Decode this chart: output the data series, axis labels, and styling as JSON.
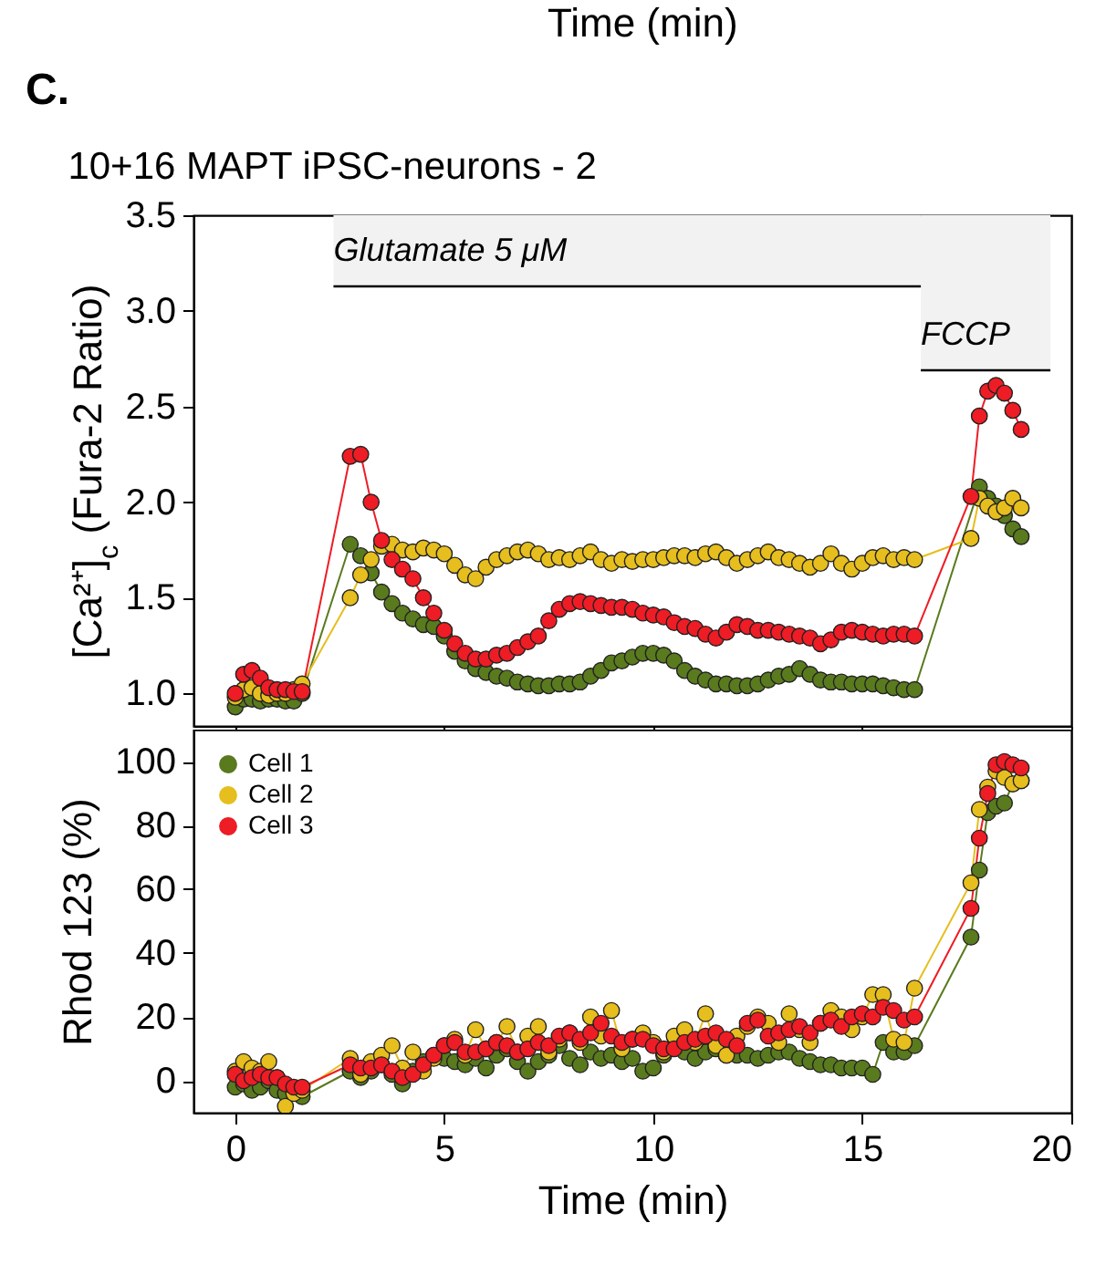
{
  "chart_data": [
    {
      "type": "line",
      "title": "10+16 MAPT iPSC-neurons - 2",
      "ylabel": "[Ca²⁺]$_{c}$ (Fura-2 Ratio)",
      "marker": "circle",
      "tick_labels": "y",
      "grid": false,
      "annotations": [
        "Time (min)",
        "C."
      ],
      "bands": [
        {
          "axis": "x",
          "from": 2.35,
          "to": 16.4,
          "label": "Glutamate 5 μM",
          "color": "#f2f2f2"
        },
        {
          "axis": "x",
          "from": 16.4,
          "to": 19.5,
          "label": "FCCP",
          "color": "#f2f2f2"
        }
      ],
      "xlim": [
        -1,
        20
      ],
      "xticks": [
        0,
        5,
        10,
        15,
        20
      ],
      "ylim": [
        0.83,
        3.5
      ],
      "yticks": [
        {
          "value": 1,
          "label": "1.0"
        },
        {
          "value": 1.5,
          "label": "1.5"
        },
        {
          "value": 2,
          "label": "2.0"
        },
        {
          "value": 2.5,
          "label": "2.5"
        },
        {
          "value": 3,
          "label": "3.0"
        },
        {
          "value": 3.5,
          "label": "3.5"
        }
      ],
      "x": [
        0,
        0.2,
        0.4,
        0.6,
        0.8,
        1,
        1.2,
        1.4,
        1.6,
        2.75,
        3,
        3.25,
        3.5,
        3.75,
        4,
        4.25,
        4.5,
        4.75,
        5,
        5.25,
        5.5,
        5.75,
        6,
        6.25,
        6.5,
        6.75,
        7,
        7.25,
        7.5,
        7.75,
        8,
        8.25,
        8.5,
        8.75,
        9,
        9.25,
        9.5,
        9.75,
        10,
        10.25,
        10.5,
        10.75,
        11,
        11.25,
        11.5,
        11.75,
        12,
        12.25,
        12.5,
        12.75,
        13,
        13.25,
        13.5,
        13.75,
        14,
        14.25,
        14.5,
        14.75,
        15,
        15.25,
        15.5,
        15.75,
        16,
        16.25,
        17.6,
        17.8,
        18,
        18.2,
        18.4,
        18.6,
        18.8
      ],
      "series": [
        {
          "color": "#5a7a1e",
          "values": [
            0.93,
            0.97,
            0.97,
            0.96,
            0.97,
            0.97,
            0.96,
            0.96,
            1.0,
            1.78,
            1.72,
            1.63,
            1.53,
            1.47,
            1.42,
            1.39,
            1.36,
            1.35,
            1.3,
            1.22,
            1.17,
            1.13,
            1.11,
            1.09,
            1.08,
            1.06,
            1.05,
            1.04,
            1.04,
            1.05,
            1.05,
            1.06,
            1.09,
            1.12,
            1.16,
            1.17,
            1.19,
            1.21,
            1.21,
            1.2,
            1.17,
            1.12,
            1.09,
            1.07,
            1.05,
            1.05,
            1.04,
            1.04,
            1.05,
            1.07,
            1.09,
            1.1,
            1.13,
            1.1,
            1.07,
            1.06,
            1.06,
            1.05,
            1.05,
            1.05,
            1.04,
            1.03,
            1.02,
            1.02,
            null,
            2.08,
            2.02,
            1.98,
            1.93,
            1.86,
            1.82
          ]
        },
        {
          "color": "#e6be1e",
          "values": [
            0.98,
            1.02,
            1.03,
            1.0,
            0.99,
            1.0,
            1.0,
            1.02,
            1.05,
            1.5,
            1.62,
            1.7,
            1.77,
            1.78,
            1.75,
            1.74,
            1.76,
            1.75,
            1.73,
            1.67,
            1.62,
            1.6,
            1.66,
            1.7,
            1.72,
            1.74,
            1.75,
            1.73,
            1.7,
            1.71,
            1.7,
            1.72,
            1.74,
            1.7,
            1.68,
            1.7,
            1.69,
            1.7,
            1.7,
            1.71,
            1.72,
            1.72,
            1.71,
            1.73,
            1.74,
            1.71,
            1.68,
            1.7,
            1.72,
            1.74,
            1.71,
            1.7,
            1.68,
            1.66,
            1.68,
            1.73,
            1.68,
            1.65,
            1.68,
            1.71,
            1.72,
            1.7,
            1.71,
            1.7,
            1.81,
            2.02,
            1.98,
            1.95,
            1.97,
            2.02,
            1.97
          ]
        },
        {
          "color": "#ee1c25",
          "values": [
            1.0,
            1.1,
            1.12,
            1.08,
            1.03,
            1.02,
            1.02,
            1.01,
            1.01,
            2.24,
            2.25,
            2.0,
            1.8,
            1.7,
            1.65,
            1.6,
            1.5,
            1.42,
            1.33,
            1.26,
            1.21,
            1.18,
            1.18,
            1.2,
            1.21,
            1.24,
            1.27,
            1.3,
            1.38,
            1.44,
            1.47,
            1.48,
            1.47,
            1.46,
            1.45,
            1.45,
            1.44,
            1.42,
            1.41,
            1.4,
            1.37,
            1.35,
            1.34,
            1.31,
            1.29,
            1.32,
            1.36,
            1.35,
            1.33,
            1.33,
            1.32,
            1.31,
            1.3,
            1.29,
            1.26,
            1.28,
            1.32,
            1.33,
            1.32,
            1.31,
            1.3,
            1.31,
            1.31,
            1.3,
            2.03,
            2.45,
            2.58,
            2.61,
            2.57,
            2.48,
            2.38
          ]
        }
      ]
    },
    {
      "type": "line",
      "xlabel": "Time (min)",
      "ylabel": "Rhod 123 (%)",
      "marker": "circle",
      "legend": "top left",
      "grid": false,
      "xlim": [
        -1,
        20
      ],
      "xticks": [
        0,
        5,
        10,
        15,
        20
      ],
      "ylim": [
        -10,
        110
      ],
      "yticks": [
        0,
        20,
        40,
        60,
        80,
        100
      ],
      "x": [
        0,
        0.2,
        0.4,
        0.6,
        0.8,
        1,
        1.2,
        1.4,
        1.6,
        2.75,
        3,
        3.25,
        3.5,
        3.75,
        4,
        4.25,
        4.5,
        4.75,
        5,
        5.25,
        5.5,
        5.75,
        6,
        6.25,
        6.5,
        6.75,
        7,
        7.25,
        7.5,
        7.75,
        8,
        8.25,
        8.5,
        8.75,
        9,
        9.25,
        9.5,
        9.75,
        10,
        10.25,
        10.5,
        10.75,
        11,
        11.25,
        11.5,
        11.75,
        12,
        12.25,
        12.5,
        12.75,
        13,
        13.25,
        13.5,
        13.75,
        14,
        14.25,
        14.5,
        14.75,
        15,
        15.25,
        15.5,
        15.75,
        16,
        16.25,
        17.6,
        17.8,
        18,
        18.2,
        18.4,
        18.6,
        18.8
      ],
      "series": [
        {
          "name": "Cell 1",
          "color": "#5a7a1e",
          "values": [
            -2,
            -1,
            -3,
            -2,
            0,
            -3,
            -4,
            -3,
            -5,
            3,
            1,
            3,
            5,
            2,
            -1,
            3,
            6,
            8,
            7,
            6,
            5,
            7,
            4,
            8,
            10,
            6,
            3,
            6,
            8,
            11,
            7,
            5,
            9,
            7,
            8,
            6,
            7,
            3,
            4,
            8,
            11,
            9,
            7,
            9,
            10,
            8,
            8,
            8,
            7,
            8,
            9,
            9,
            7,
            6,
            5,
            5,
            4,
            4,
            4,
            2,
            12,
            9,
            9,
            11,
            45,
            66,
            84,
            86,
            87,
            93,
            94
          ]
        },
        {
          "name": "Cell 2",
          "color": "#e6be1e",
          "values": [
            3,
            6,
            4,
            3,
            6,
            1,
            -8,
            -4,
            -3,
            7,
            2,
            6,
            8,
            11,
            4,
            9,
            3,
            7,
            11,
            13,
            8,
            16,
            10,
            12,
            17,
            9,
            14,
            17,
            9,
            13,
            15,
            12,
            20,
            14,
            22,
            10,
            13,
            15,
            12,
            9,
            14,
            16,
            12,
            21,
            11,
            8,
            14,
            17,
            20,
            18,
            12,
            21,
            16,
            12,
            18,
            22,
            20,
            16,
            20,
            27,
            27,
            13,
            12,
            29,
            62,
            85,
            92,
            97,
            95,
            93,
            94
          ]
        },
        {
          "name": "Cell 3",
          "color": "#ee1c25",
          "values": [
            2,
            0,
            1,
            2,
            1,
            1,
            -1,
            -2,
            -2,
            5,
            4,
            4,
            5,
            3,
            1,
            2,
            5,
            8,
            11,
            12,
            9,
            9,
            10,
            12,
            11,
            9,
            10,
            12,
            11,
            14,
            15,
            13,
            15,
            18,
            14,
            12,
            13,
            13,
            11,
            10,
            10,
            12,
            13,
            14,
            15,
            13,
            11,
            18,
            19,
            14,
            15,
            16,
            17,
            15,
            18,
            19,
            17,
            20,
            21,
            20,
            23,
            22,
            19,
            20,
            54,
            76,
            90,
            99,
            100,
            99,
            98
          ]
        }
      ]
    }
  ]
}
